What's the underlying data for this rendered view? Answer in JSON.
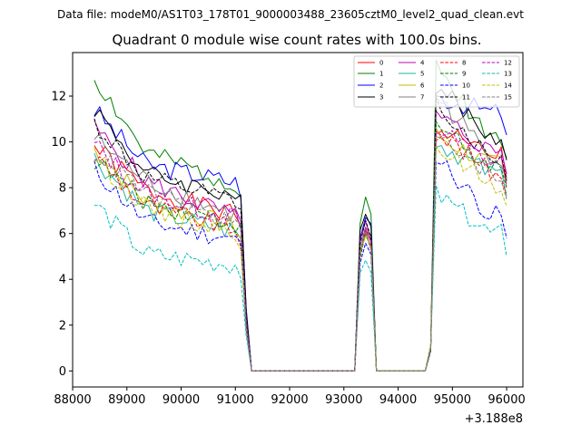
{
  "figure": {
    "suptitle": "Data file: modeM0/AS1T03_178T01_9000003488_23605cztM0_level2_quad_clean.evt"
  },
  "chart_data": {
    "type": "line",
    "title": "Quadrant 0 module wise count rates with 100.0s bins.",
    "xlabel": "",
    "ylabel": "",
    "x_offset_label": "+3.188e8",
    "xlim": [
      88000,
      96300
    ],
    "ylim": [
      -0.7,
      13.9
    ],
    "x_ticks": [
      88000,
      89000,
      90000,
      91000,
      92000,
      93000,
      94000,
      95000,
      96000
    ],
    "x_tick_labels": [
      "88000",
      "89000",
      "90000",
      "91000",
      "92000",
      "93000",
      "94000",
      "95000",
      "96000"
    ],
    "y_ticks": [
      0,
      2,
      4,
      6,
      8,
      10,
      12
    ],
    "y_tick_labels": [
      "0",
      "2",
      "4",
      "6",
      "8",
      "10",
      "12"
    ],
    "legend_position": "top-right",
    "segments": [
      {
        "start": 88400,
        "step": 100,
        "count": 30
      },
      {
        "start": 91300,
        "step": 100,
        "count": 20
      },
      {
        "start": 93300,
        "step": 100,
        "count": 3
      },
      {
        "start": 93600,
        "step": 100,
        "count": 9
      },
      {
        "start": 94500,
        "step": 100,
        "count": 2
      },
      {
        "start": 94700,
        "step": 100,
        "count": 14
      }
    ],
    "series": [
      {
        "name": "0",
        "color": "#ff0000",
        "dash": "solid",
        "seed": 1,
        "levels": [
          9.8,
          7.9,
          6.1,
          10.5,
          8.4
        ]
      },
      {
        "name": "1",
        "color": "#008000",
        "dash": "solid",
        "seed": 2,
        "levels": [
          12.8,
          9.5,
          7.5,
          13.2,
          9.3
        ]
      },
      {
        "name": "2",
        "color": "#0000ff",
        "dash": "solid",
        "seed": 3,
        "levels": [
          11.4,
          9.0,
          7.6,
          12.0,
          10.3
        ]
      },
      {
        "name": "3",
        "color": "#000000",
        "dash": "solid",
        "seed": 4,
        "levels": [
          11.5,
          8.6,
          7.0,
          12.5,
          9.2
        ]
      },
      {
        "name": "4",
        "color": "#bf00bf",
        "dash": "solid",
        "seed": 5,
        "levels": [
          10.6,
          8.3,
          6.0,
          11.2,
          8.6
        ]
      },
      {
        "name": "5",
        "color": "#20b2aa",
        "dash": "solid",
        "seed": 6,
        "levels": [
          9.3,
          7.0,
          5.4,
          10.0,
          7.6
        ]
      },
      {
        "name": "6",
        "color": "#bfbf00",
        "dash": "solid",
        "seed": 7,
        "levels": [
          9.7,
          7.4,
          5.6,
          10.3,
          8.0
        ]
      },
      {
        "name": "7",
        "color": "#808080",
        "dash": "solid",
        "seed": 8,
        "levels": [
          10.2,
          8.3,
          6.1,
          12.0,
          8.4
        ]
      },
      {
        "name": "8",
        "color": "#ff0000",
        "dash": "dashed",
        "seed": 9,
        "levels": [
          9.4,
          7.2,
          5.5,
          10.5,
          7.7
        ]
      },
      {
        "name": "9",
        "color": "#008000",
        "dash": "dashed",
        "seed": 10,
        "levels": [
          9.2,
          7.4,
          5.8,
          10.8,
          8.0
        ]
      },
      {
        "name": "10",
        "color": "#0000ff",
        "dash": "dashed",
        "seed": 11,
        "levels": [
          8.8,
          6.5,
          5.1,
          9.4,
          5.8
        ]
      },
      {
        "name": "11",
        "color": "#000000",
        "dash": "dashed",
        "seed": 12,
        "levels": [
          10.8,
          8.4,
          6.7,
          11.7,
          8.3
        ]
      },
      {
        "name": "12",
        "color": "#bf00bf",
        "dash": "dashed",
        "seed": 13,
        "levels": [
          9.9,
          7.7,
          6.0,
          10.6,
          8.1
        ]
      },
      {
        "name": "13",
        "color": "#00bfbf",
        "dash": "dashed",
        "seed": 14,
        "levels": [
          7.3,
          5.1,
          4.0,
          7.7,
          5.0
        ]
      },
      {
        "name": "14",
        "color": "#bfbf00",
        "dash": "dashed",
        "seed": 15,
        "levels": [
          9.4,
          7.1,
          5.4,
          9.8,
          7.2
        ]
      },
      {
        "name": "15",
        "color": "#808080",
        "dash": "dashed",
        "seed": 16,
        "levels": [
          9.6,
          7.8,
          5.7,
          10.6,
          7.5
        ]
      }
    ]
  }
}
